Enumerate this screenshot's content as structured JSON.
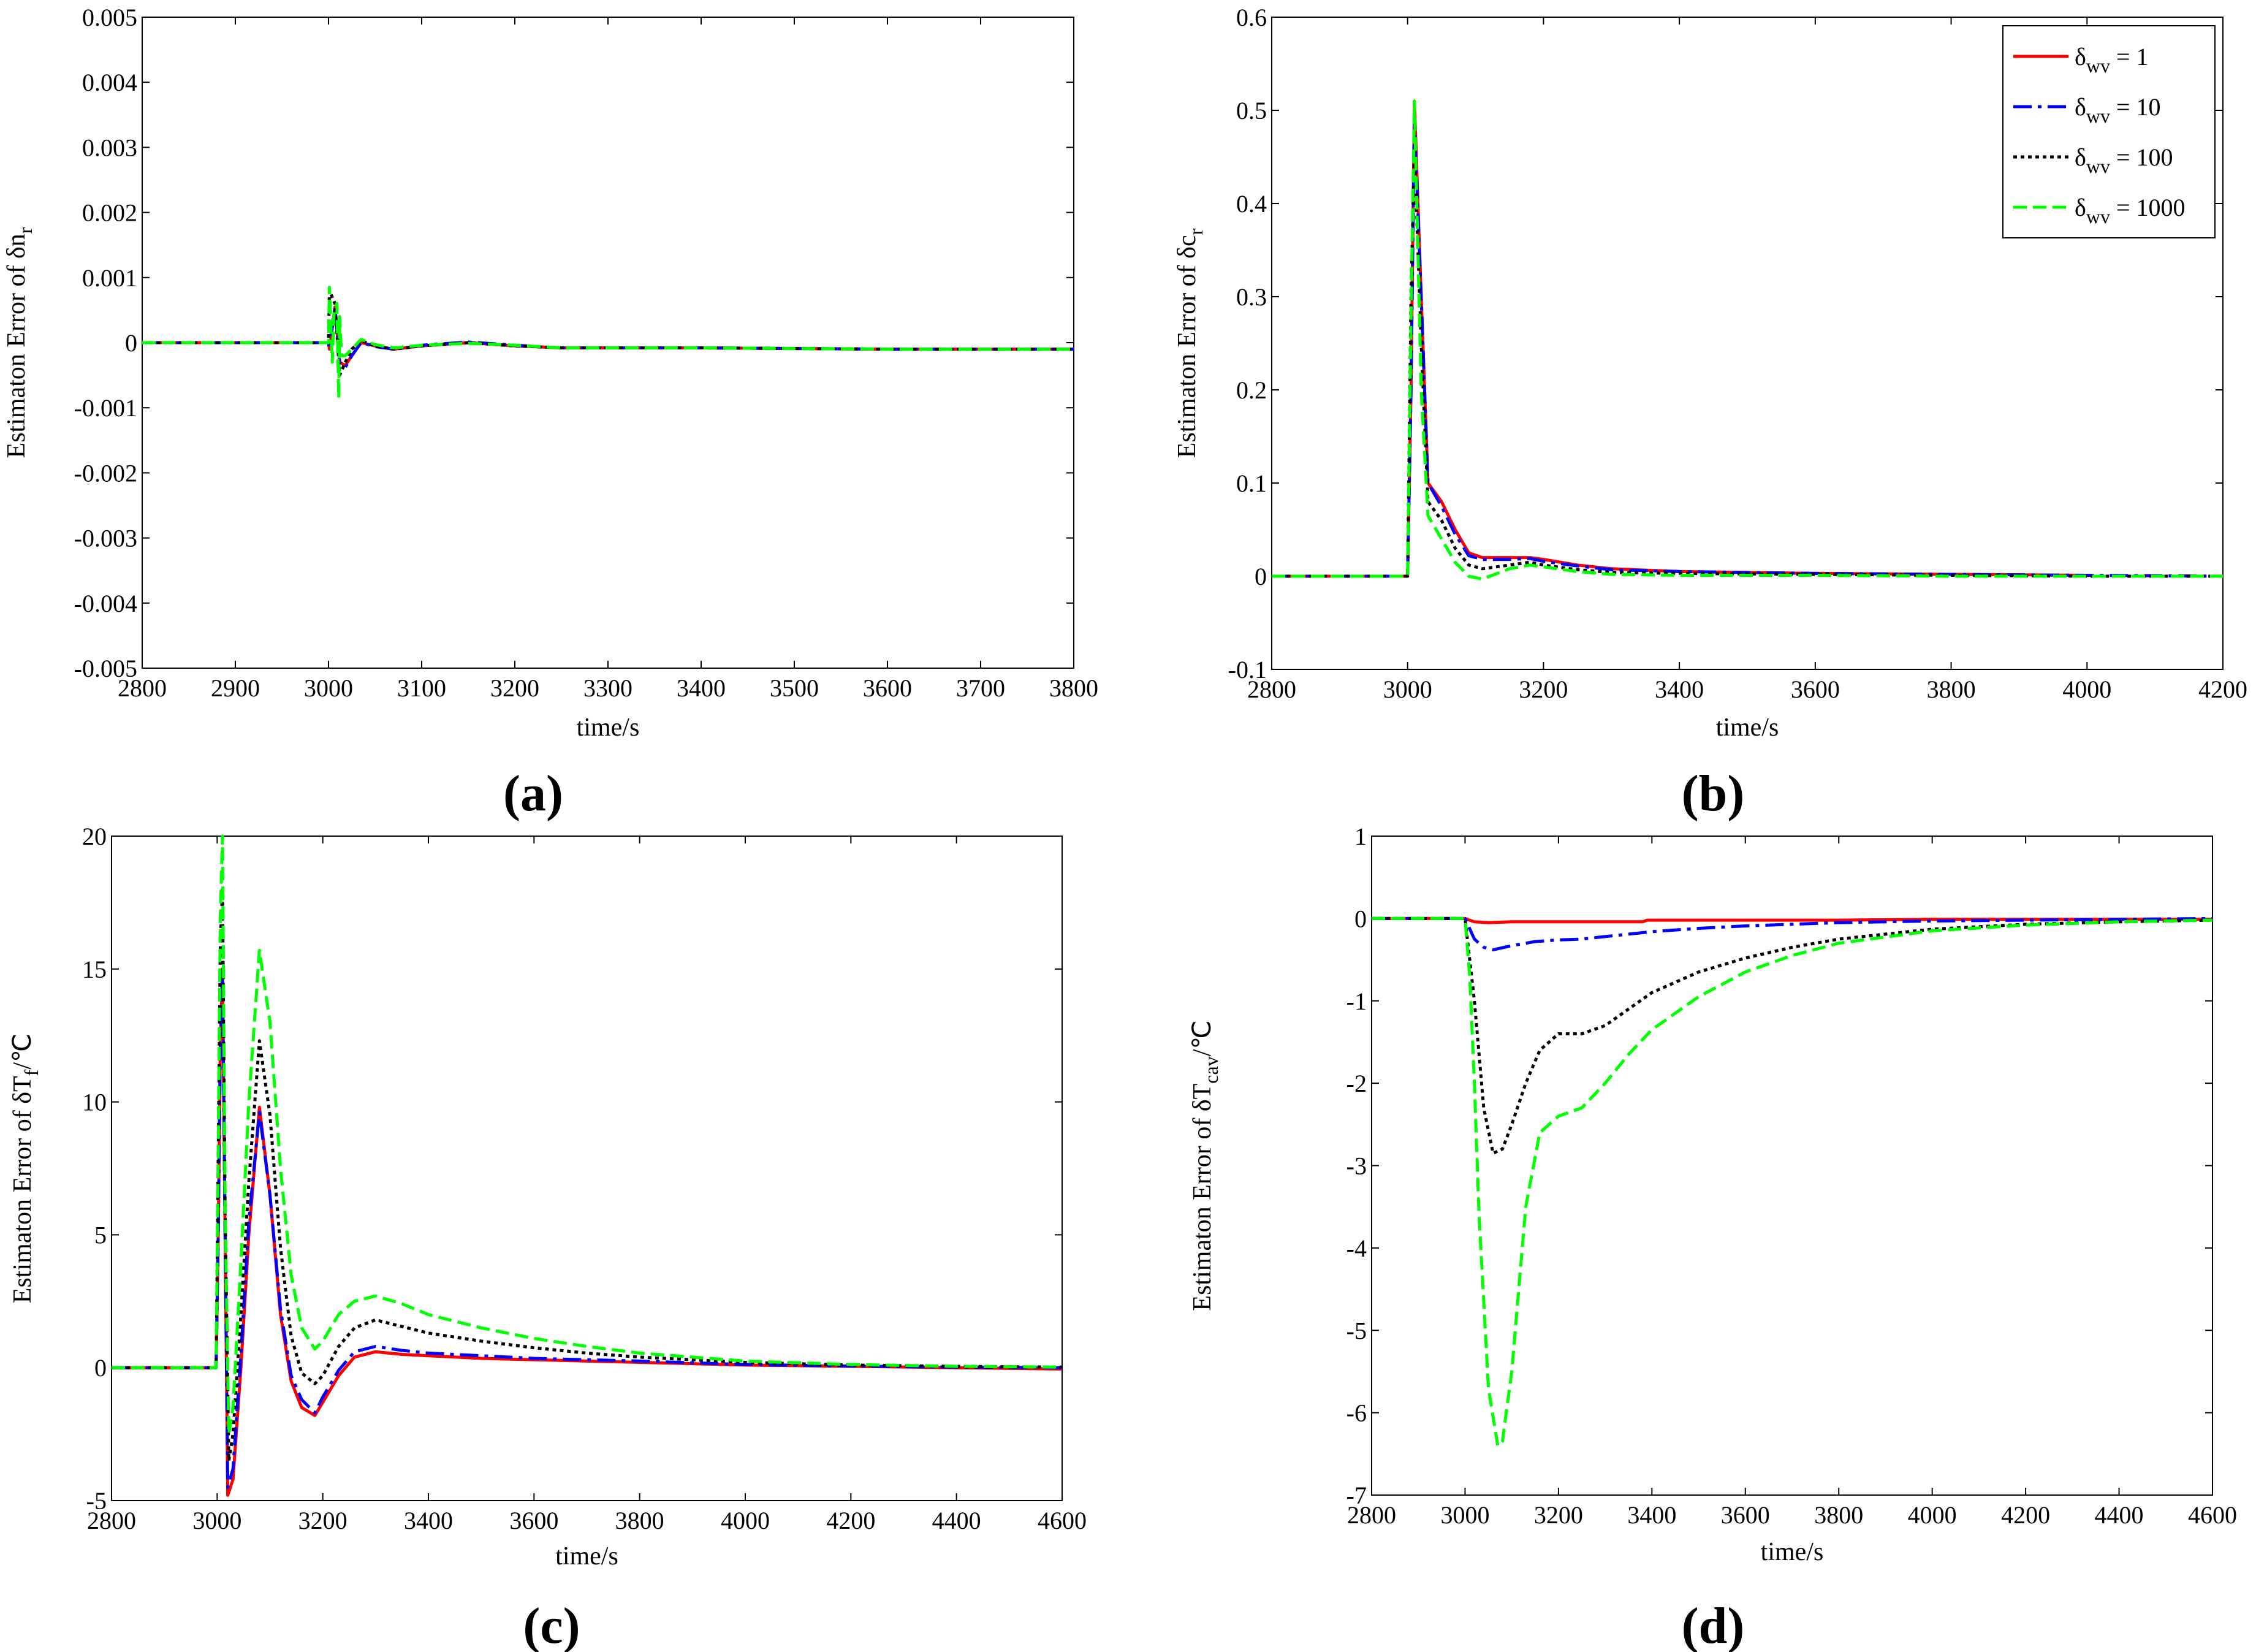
{
  "colors": {
    "s1": "#ff0000",
    "s2": "#0000ff",
    "s3": "#000000",
    "s4": "#00ff00"
  },
  "legend": {
    "entries": [
      {
        "symbol": "δ",
        "sub": "wv",
        "value": " = 1",
        "series": 0
      },
      {
        "symbol": "δ",
        "sub": "wv",
        "value": " = 10",
        "series": 1
      },
      {
        "symbol": "δ",
        "sub": "wv",
        "value": " = 100",
        "series": 2
      },
      {
        "symbol": "δ",
        "sub": "wv",
        "value": " = 1000",
        "series": 3
      }
    ]
  },
  "chart_data": [
    {
      "panel": "a",
      "tag": "(a)",
      "type": "line",
      "xlabel": "time/s",
      "ylabel": {
        "main": "Estimaton Error of δn",
        "sub": "r",
        "tail": ""
      },
      "xlim": [
        2800,
        3800
      ],
      "ylim": [
        -0.005,
        0.005
      ],
      "xticks": [
        2800,
        2900,
        3000,
        3100,
        3200,
        3300,
        3400,
        3500,
        3600,
        3700,
        3800
      ],
      "xtick_labels": [
        "2800",
        "2900",
        "3000",
        "3100",
        "3200",
        "3300",
        "3400",
        "3500",
        "3600",
        "3700",
        "3800"
      ],
      "yticks": [
        -0.005,
        -0.004,
        -0.003,
        -0.002,
        -0.001,
        0,
        0.001,
        0.002,
        0.003,
        0.004,
        0.005
      ],
      "ytick_labels": [
        "-0.005",
        "-0.004",
        "-0.003",
        "-0.002",
        "-0.001",
        "0",
        "0.001",
        "0.002",
        "0.003",
        "0.004",
        "0.005"
      ],
      "series": [
        {
          "name": "δwv = 1",
          "x": [
            2800,
            3000,
            3001,
            3007,
            3012,
            3018,
            3025,
            3035,
            3050,
            3070,
            3100,
            3150,
            3200,
            3250,
            3400,
            3600,
            3800
          ],
          "y": [
            0,
            0,
            -0.0001,
            0.00055,
            -0.0003,
            -0.00035,
            -0.0002,
            0.0,
            -5e-05,
            -0.0001,
            -5e-05,
            0.0,
            -5e-05,
            -8e-05,
            -8e-05,
            -0.0001,
            -0.0001
          ]
        },
        {
          "name": "δwv = 10",
          "x": [
            2800,
            3000,
            3001,
            3007,
            3012,
            3018,
            3025,
            3035,
            3050,
            3070,
            3100,
            3150,
            3200,
            3250,
            3400,
            3600,
            3800
          ],
          "y": [
            0,
            0,
            -0.0001,
            0.00055,
            -0.0003,
            -0.00038,
            -0.0002,
            0.0,
            -6e-05,
            -0.0001,
            -4e-05,
            1e-05,
            -4e-05,
            -8e-05,
            -8e-05,
            -0.0001,
            -0.0001
          ]
        },
        {
          "name": "δwv = 100",
          "x": [
            2800,
            3000,
            3001,
            3007,
            3012,
            3018,
            3025,
            3035,
            3050,
            3070,
            3100,
            3150,
            3200,
            3250,
            3400,
            3600,
            3800
          ],
          "y": [
            0,
            0,
            0.0008,
            0.0006,
            -0.0005,
            -0.0003,
            -0.0001,
            3e-05,
            -5e-05,
            -0.0001,
            -5e-05,
            0.0,
            -5e-05,
            -8e-05,
            -8e-05,
            -0.0001,
            -0.0001
          ]
        },
        {
          "name": "δwv = 1000",
          "x": [
            2800,
            3000,
            3001,
            3004,
            3006,
            3009,
            3011,
            3012,
            3014,
            3018,
            3025,
            3035,
            3050,
            3070,
            3100,
            3150,
            3200,
            3250,
            3400,
            3600,
            3800
          ],
          "y": [
            0,
            0,
            0.00085,
            -0.0003,
            0.0005,
            0.0006,
            -0.00085,
            0.0004,
            -0.0002,
            -0.0002,
            -0.0001,
            5e-05,
            -3e-05,
            -8e-05,
            -4e-05,
            -1e-05,
            -4e-05,
            -8e-05,
            -8e-05,
            -0.0001,
            -0.0001
          ]
        }
      ]
    },
    {
      "panel": "b",
      "tag": "(b)",
      "type": "line",
      "xlabel": "time/s",
      "ylabel": {
        "main": "Estimaton Error of δc",
        "sub": "r",
        "tail": ""
      },
      "xlim": [
        2800,
        4200
      ],
      "ylim": [
        -0.1,
        0.6
      ],
      "xticks": [
        2800,
        3000,
        3200,
        3400,
        3600,
        3800,
        4000,
        4200
      ],
      "xtick_labels": [
        "2800",
        "3000",
        "3200",
        "3400",
        "3600",
        "3800",
        "4000",
        "4200"
      ],
      "yticks": [
        -0.1,
        0,
        0.1,
        0.2,
        0.3,
        0.4,
        0.5,
        0.6
      ],
      "ytick_labels": [
        "-0.1",
        "0",
        "0.1",
        "0.2",
        "0.3",
        "0.4",
        "0.5",
        "0.6"
      ],
      "series": [
        {
          "name": "δwv = 1",
          "x": [
            2800,
            3000,
            3005,
            3010,
            3020,
            3030,
            3050,
            3070,
            3090,
            3110,
            3150,
            3180,
            3200,
            3250,
            3300,
            3400,
            3600,
            3800,
            4000
          ],
          "y": [
            0,
            0,
            0.2,
            0.51,
            0.3,
            0.1,
            0.08,
            0.05,
            0.025,
            0.02,
            0.02,
            0.02,
            0.018,
            0.012,
            0.008,
            0.005,
            0.003,
            0.002,
            0.001
          ]
        },
        {
          "name": "δwv = 10",
          "x": [
            2800,
            3000,
            3005,
            3010,
            3020,
            3030,
            3050,
            3070,
            3090,
            3110,
            3150,
            3180,
            3200,
            3250,
            3300,
            3400,
            3600,
            3800,
            4000,
            4200
          ],
          "y": [
            0,
            0,
            0.2,
            0.49,
            0.3,
            0.1,
            0.075,
            0.045,
            0.022,
            0.018,
            0.018,
            0.019,
            0.016,
            0.011,
            0.007,
            0.005,
            0.003,
            0.002,
            0.001,
            0
          ]
        },
        {
          "name": "δwv = 100",
          "x": [
            2800,
            3000,
            3005,
            3010,
            3020,
            3030,
            3050,
            3070,
            3090,
            3110,
            3150,
            3180,
            3200,
            3250,
            3300,
            3400,
            3600,
            3800,
            4000,
            4200
          ],
          "y": [
            0,
            0,
            0.3,
            0.46,
            0.25,
            0.08,
            0.06,
            0.03,
            0.012,
            0.008,
            0.012,
            0.015,
            0.012,
            0.007,
            0.004,
            0.003,
            0.002,
            0.001,
            0,
            0
          ]
        },
        {
          "name": "δwv = 1000",
          "x": [
            2800,
            3000,
            3005,
            3010,
            3020,
            3030,
            3050,
            3070,
            3090,
            3110,
            3150,
            3180,
            3200,
            3250,
            3300,
            3400,
            3600,
            3800,
            4000,
            4200
          ],
          "y": [
            0,
            0,
            0.28,
            0.51,
            0.2,
            0.065,
            0.04,
            0.015,
            0.0,
            -0.003,
            0.008,
            0.012,
            0.01,
            0.005,
            0.002,
            0.001,
            0.001,
            0,
            0,
            0
          ]
        }
      ]
    },
    {
      "panel": "c",
      "tag": "(c)",
      "type": "line",
      "xlabel": "time/s",
      "ylabel": {
        "main": "Estimaton Error of δT",
        "sub": "f",
        "tail": "/℃"
      },
      "xlim": [
        2800,
        4600
      ],
      "ylim": [
        -5,
        20
      ],
      "xticks": [
        2800,
        3000,
        3200,
        3400,
        3600,
        3800,
        4000,
        4200,
        4400,
        4600
      ],
      "xtick_labels": [
        "2800",
        "3000",
        "3200",
        "3400",
        "3600",
        "3800",
        "4000",
        "4200",
        "4400",
        "4600"
      ],
      "yticks": [
        -5,
        0,
        5,
        10,
        15,
        20
      ],
      "ytick_labels": [
        "-5",
        "0",
        "5",
        "10",
        "15",
        "20"
      ],
      "series": [
        {
          "name": "δwv = 1",
          "x": [
            2800,
            2998,
            3002,
            3006,
            3010,
            3015,
            3020,
            3030,
            3045,
            3060,
            3080,
            3100,
            3120,
            3140,
            3160,
            3185,
            3200,
            3230,
            3260,
            3300,
            3350,
            3400,
            3500,
            3600,
            3700,
            3800,
            4000,
            4200,
            4400,
            4600
          ],
          "y": [
            0,
            0,
            5,
            12,
            15,
            5,
            -4.8,
            -4.2,
            0,
            5,
            9.8,
            6.5,
            2,
            -0.5,
            -1.5,
            -1.8,
            -1.3,
            -0.3,
            0.4,
            0.6,
            0.5,
            0.45,
            0.35,
            0.3,
            0.25,
            0.2,
            0.1,
            0.05,
            0,
            -0.05
          ]
        },
        {
          "name": "δwv = 10",
          "x": [
            2800,
            2998,
            3002,
            3006,
            3010,
            3015,
            3020,
            3030,
            3045,
            3060,
            3080,
            3100,
            3120,
            3140,
            3160,
            3185,
            3200,
            3230,
            3260,
            3300,
            3350,
            3400,
            3500,
            3600,
            3700,
            3800,
            4000,
            4200,
            4400,
            4600
          ],
          "y": [
            0,
            0,
            5,
            12,
            15,
            5,
            -4.5,
            -3.8,
            0.5,
            5.5,
            9.6,
            6.5,
            2.2,
            -0.3,
            -1.2,
            -1.7,
            -1.1,
            -0.1,
            0.6,
            0.8,
            0.65,
            0.55,
            0.45,
            0.35,
            0.3,
            0.25,
            0.12,
            0.06,
            0.02,
            0
          ]
        },
        {
          "name": "δwv = 100",
          "x": [
            2800,
            2998,
            3002,
            3006,
            3010,
            3015,
            3022,
            3030,
            3045,
            3060,
            3080,
            3100,
            3120,
            3140,
            3160,
            3185,
            3200,
            3230,
            3260,
            3300,
            3350,
            3400,
            3500,
            3600,
            3700,
            3800,
            4000,
            4200,
            4400,
            4600
          ],
          "y": [
            0,
            0,
            8,
            16,
            18,
            6,
            -3.5,
            -2.5,
            2,
            7,
            12.3,
            9.5,
            4.5,
            1.2,
            -0.2,
            -0.6,
            -0.3,
            0.8,
            1.5,
            1.8,
            1.55,
            1.3,
            1.0,
            0.75,
            0.55,
            0.4,
            0.2,
            0.1,
            0.05,
            0.02
          ]
        },
        {
          "name": "δwv = 1000",
          "x": [
            2800,
            2998,
            3002,
            3006,
            3010,
            3015,
            3022,
            3030,
            3045,
            3060,
            3080,
            3100,
            3120,
            3140,
            3160,
            3185,
            3200,
            3230,
            3260,
            3300,
            3350,
            3400,
            3500,
            3600,
            3700,
            3800,
            4000,
            4200,
            4400,
            4600
          ],
          "y": [
            0,
            0,
            8,
            17,
            20,
            6,
            -2.5,
            -1.5,
            4,
            10,
            15.7,
            13,
            7.5,
            3.5,
            1.5,
            0.7,
            1.0,
            2.0,
            2.5,
            2.7,
            2.4,
            2.0,
            1.5,
            1.1,
            0.8,
            0.55,
            0.25,
            0.12,
            0.05,
            0.02
          ]
        }
      ]
    },
    {
      "panel": "d",
      "tag": "(d)",
      "type": "line",
      "xlabel": "time/s",
      "ylabel": {
        "main": "Estimaton Error of δT",
        "sub": "cav",
        "tail": "/℃"
      },
      "xlim": [
        2800,
        4600
      ],
      "ylim": [
        -7,
        1
      ],
      "xticks": [
        2800,
        3000,
        3200,
        3400,
        3600,
        3800,
        4000,
        4200,
        4400,
        4600
      ],
      "xtick_labels": [
        "2800",
        "3000",
        "3200",
        "3400",
        "3600",
        "3800",
        "4000",
        "4200",
        "4400",
        "4600"
      ],
      "yticks": [
        -7,
        -6,
        -5,
        -4,
        -3,
        -2,
        -1,
        0,
        1
      ],
      "ytick_labels": [
        "-7",
        "-6",
        "-5",
        "-4",
        "-3",
        "-2",
        "-1",
        "0",
        "1"
      ],
      "series": [
        {
          "name": "δwv = 1",
          "x": [
            2800,
            3000,
            3020,
            3050,
            3100,
            3200,
            3300,
            3380,
            3390,
            3600,
            3800,
            4000,
            4200,
            4400,
            4600
          ],
          "y": [
            0,
            0,
            -0.04,
            -0.05,
            -0.04,
            -0.04,
            -0.04,
            -0.04,
            -0.02,
            -0.02,
            -0.02,
            -0.01,
            -0.01,
            -0.01,
            -0.01
          ]
        },
        {
          "name": "δwv = 10",
          "x": [
            2800,
            3000,
            3020,
            3040,
            3060,
            3100,
            3150,
            3200,
            3250,
            3300,
            3400,
            3500,
            3600,
            3700,
            3800,
            4000,
            4200,
            4400,
            4600
          ],
          "y": [
            0,
            0,
            -0.25,
            -0.35,
            -0.38,
            -0.33,
            -0.28,
            -0.26,
            -0.25,
            -0.22,
            -0.16,
            -0.12,
            -0.09,
            -0.07,
            -0.05,
            -0.03,
            -0.02,
            -0.01,
            0
          ]
        },
        {
          "name": "δwv = 100",
          "x": [
            2800,
            3000,
            3020,
            3040,
            3060,
            3080,
            3100,
            3130,
            3160,
            3200,
            3250,
            3300,
            3350,
            3400,
            3500,
            3600,
            3700,
            3800,
            4000,
            4200,
            4400,
            4600
          ],
          "y": [
            0,
            0,
            -1.0,
            -2.3,
            -2.85,
            -2.8,
            -2.5,
            -2.0,
            -1.6,
            -1.4,
            -1.4,
            -1.3,
            -1.1,
            -0.9,
            -0.65,
            -0.48,
            -0.35,
            -0.25,
            -0.13,
            -0.07,
            -0.04,
            -0.02
          ]
        },
        {
          "name": "δwv = 1000",
          "x": [
            2800,
            3000,
            3010,
            3020,
            3030,
            3050,
            3070,
            3080,
            3100,
            3130,
            3160,
            3200,
            3250,
            3300,
            3350,
            3400,
            3500,
            3600,
            3700,
            3800,
            4000,
            4200,
            4400,
            4600
          ],
          "y": [
            0,
            0,
            -0.7,
            -2.0,
            -3.6,
            -5.7,
            -6.4,
            -6.35,
            -5.5,
            -3.5,
            -2.6,
            -2.4,
            -2.3,
            -2.0,
            -1.65,
            -1.35,
            -0.95,
            -0.65,
            -0.45,
            -0.3,
            -0.15,
            -0.08,
            -0.04,
            -0.02
          ]
        }
      ]
    }
  ]
}
